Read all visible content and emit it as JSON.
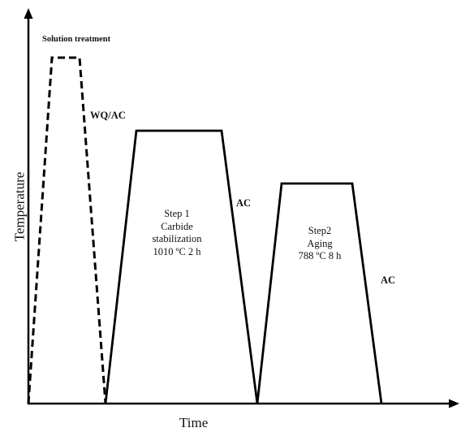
{
  "axes": {
    "x_label": "Time",
    "y_label": "Temperature"
  },
  "stages": {
    "solution": {
      "label": "Solution treatment",
      "cooling_label": "WQ/AC",
      "line_style": "dashed"
    },
    "step1": {
      "lines": [
        "Step 1",
        "Carbide",
        "stabilization",
        "1010 ºC 2 h"
      ],
      "cooling_label": "AC",
      "line_style": "solid"
    },
    "step2": {
      "lines": [
        "Step2",
        "Aging",
        "788 ºC 8 h"
      ],
      "cooling_label": "AC",
      "line_style": "solid"
    }
  },
  "colors": {
    "line": "#000000",
    "background": "#ffffff"
  }
}
